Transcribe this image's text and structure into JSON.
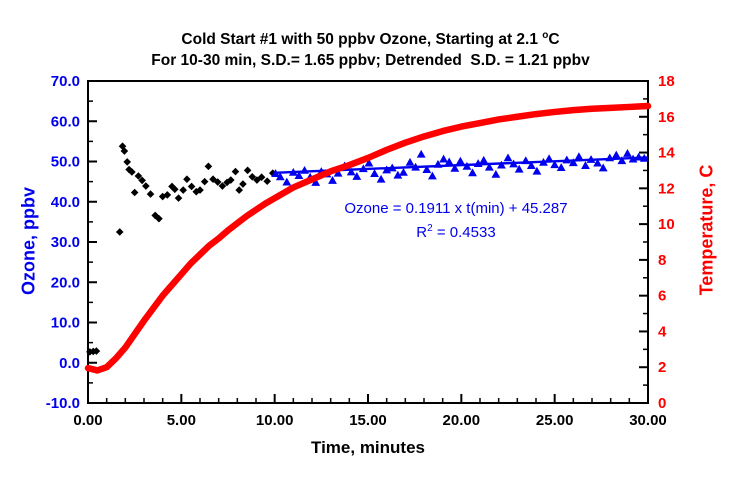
{
  "colors": {
    "ozone_blue": "#0000ee",
    "temp_red": "#ff0000",
    "axis_black": "#000000",
    "background": "#ffffff"
  },
  "titles": {
    "line1_prefix": "Cold Start #1 with 50 ppbv Ozone, Starting at 2.1 ",
    "line1_sup": "o",
    "line1_suffix": "C",
    "line2": "For 10-30 min, S.D.= 1.65 ppbv; Detrended  S.D. = 1.21 ppbv"
  },
  "annotation": {
    "line1": "Ozone = 0.1911 x t(min) + 45.287",
    "line2_base": "R",
    "line2_sup": "2",
    "line2_rest": " = 0.4533"
  },
  "chart_data": {
    "type": "scatter",
    "title": "Cold Start #1 with 50 ppbv Ozone, Starting at 2.1 °C",
    "subtitle": "For 10-30 min, S.D.= 1.65 ppbv; Detrended  S.D. = 1.21 ppbv",
    "xlabel": "Time, minutes",
    "ylabel_left": "Ozone, ppbv",
    "ylabel_right": "Temperature, C",
    "xlim": [
      0,
      30
    ],
    "ylim_left": [
      -10,
      70
    ],
    "ylim_right": [
      0,
      18
    ],
    "grid": false,
    "x_ticks": [
      0,
      5,
      10,
      15,
      20,
      25,
      30
    ],
    "x_tick_labels": [
      "0.00",
      "5.00",
      "10.00",
      "15.00",
      "20.00",
      "25.00",
      "30.00"
    ],
    "x_minor_step": 1,
    "y_left_ticks": [
      70,
      60,
      50,
      40,
      30,
      20,
      10,
      0,
      -10
    ],
    "y_left_labels": [
      "70.0",
      "60.0",
      "50.0",
      "40.0",
      "30.0",
      "20.0",
      "10.0",
      "0.0",
      "-10.0"
    ],
    "y_left_minor_step": 5,
    "y_right_ticks": [
      18,
      16,
      14,
      12,
      10,
      8,
      6,
      4,
      2,
      0
    ],
    "y_right_labels": [
      "18",
      "16",
      "14",
      "12",
      "10",
      "8",
      "6",
      "4",
      "2",
      "0"
    ],
    "y_right_minor_step": 1,
    "fit": {
      "slope": 0.1911,
      "intercept": 45.287,
      "r_squared": 0.4533,
      "x_range": [
        10,
        30
      ]
    },
    "series": [
      {
        "name": "ozone-0-10min",
        "type": "scatter",
        "marker": "diamond",
        "color": "#000000",
        "axis": "left",
        "points": [
          [
            0.1,
            2.7
          ],
          [
            0.28,
            2.8
          ],
          [
            0.45,
            2.9
          ],
          [
            1.7,
            32.5
          ],
          [
            1.85,
            53.8
          ],
          [
            1.95,
            52.6
          ],
          [
            2.1,
            49.9
          ],
          [
            2.2,
            48.0
          ],
          [
            2.35,
            47.4
          ],
          [
            2.5,
            42.3
          ],
          [
            2.7,
            46.4
          ],
          [
            2.9,
            45.3
          ],
          [
            3.1,
            43.9
          ],
          [
            3.35,
            41.9
          ],
          [
            3.6,
            36.6
          ],
          [
            3.8,
            35.8
          ],
          [
            4.0,
            41.3
          ],
          [
            4.25,
            41.7
          ],
          [
            4.5,
            43.8
          ],
          [
            4.65,
            43.1
          ],
          [
            4.85,
            40.9
          ],
          [
            5.1,
            42.9
          ],
          [
            5.3,
            45.6
          ],
          [
            5.55,
            43.8
          ],
          [
            5.8,
            42.5
          ],
          [
            6.0,
            42.9
          ],
          [
            6.25,
            45.0
          ],
          [
            6.45,
            48.8
          ],
          [
            6.7,
            45.6
          ],
          [
            6.95,
            44.9
          ],
          [
            7.2,
            43.9
          ],
          [
            7.45,
            44.8
          ],
          [
            7.65,
            45.4
          ],
          [
            7.9,
            47.5
          ],
          [
            8.1,
            42.9
          ],
          [
            8.3,
            44.4
          ],
          [
            8.55,
            47.8
          ],
          [
            8.8,
            46.2
          ],
          [
            9.05,
            45.4
          ],
          [
            9.3,
            46.1
          ],
          [
            9.6,
            45.1
          ],
          [
            9.9,
            47.1
          ]
        ]
      },
      {
        "name": "ozone-10-30min",
        "type": "scatter",
        "marker": "triangle",
        "color": "#0000ee",
        "axis": "left",
        "points": [
          [
            10.05,
            47.0
          ],
          [
            10.3,
            46.2
          ],
          [
            10.65,
            44.9
          ],
          [
            11.0,
            47.3
          ],
          [
            11.3,
            46.5
          ],
          [
            11.6,
            47.8
          ],
          [
            11.9,
            46.1
          ],
          [
            12.2,
            44.8
          ],
          [
            12.5,
            47.5
          ],
          [
            12.8,
            46.9
          ],
          [
            13.1,
            45.3
          ],
          [
            13.4,
            47.1
          ],
          [
            13.75,
            48.9
          ],
          [
            14.1,
            47.4
          ],
          [
            14.4,
            46.3
          ],
          [
            14.75,
            48.2
          ],
          [
            15.05,
            49.6
          ],
          [
            15.35,
            47.0
          ],
          [
            15.7,
            45.6
          ],
          [
            16.0,
            47.9
          ],
          [
            16.3,
            48.4
          ],
          [
            16.6,
            46.6
          ],
          [
            16.9,
            47.3
          ],
          [
            17.25,
            49.8
          ],
          [
            17.55,
            48.6
          ],
          [
            17.85,
            51.8
          ],
          [
            18.15,
            48.0
          ],
          [
            18.45,
            46.4
          ],
          [
            18.75,
            49.3
          ],
          [
            19.05,
            50.6
          ],
          [
            19.35,
            49.9
          ],
          [
            19.65,
            48.3
          ],
          [
            19.95,
            50.1
          ],
          [
            20.3,
            48.8
          ],
          [
            20.6,
            47.2
          ],
          [
            20.9,
            49.5
          ],
          [
            21.2,
            50.3
          ],
          [
            21.5,
            48.6
          ],
          [
            21.85,
            46.8
          ],
          [
            22.15,
            49.1
          ],
          [
            22.5,
            50.9
          ],
          [
            22.8,
            49.4
          ],
          [
            23.1,
            48.1
          ],
          [
            23.45,
            50.2
          ],
          [
            23.75,
            49.0
          ],
          [
            24.05,
            47.6
          ],
          [
            24.4,
            49.8
          ],
          [
            24.7,
            50.7
          ],
          [
            25.0,
            49.2
          ],
          [
            25.35,
            48.5
          ],
          [
            25.65,
            50.4
          ],
          [
            26.0,
            49.7
          ],
          [
            26.3,
            51.2
          ],
          [
            26.65,
            49.0
          ],
          [
            26.95,
            50.5
          ],
          [
            27.3,
            49.6
          ],
          [
            27.6,
            48.4
          ],
          [
            27.95,
            50.9
          ],
          [
            28.3,
            51.6
          ],
          [
            28.6,
            50.2
          ],
          [
            28.9,
            52.0
          ],
          [
            29.2,
            50.6
          ],
          [
            29.5,
            51.1
          ],
          [
            29.8,
            50.8
          ]
        ]
      },
      {
        "name": "temperature",
        "type": "line",
        "color": "#ff0000",
        "axis": "right",
        "points": [
          [
            0.0,
            1.95
          ],
          [
            0.5,
            1.82
          ],
          [
            1.0,
            2.0
          ],
          [
            1.5,
            2.5
          ],
          [
            2.0,
            3.1
          ],
          [
            2.5,
            3.85
          ],
          [
            3.0,
            4.6
          ],
          [
            3.5,
            5.3
          ],
          [
            4.0,
            6.0
          ],
          [
            4.5,
            6.6
          ],
          [
            5.0,
            7.2
          ],
          [
            5.5,
            7.8
          ],
          [
            6.0,
            8.3
          ],
          [
            6.5,
            8.8
          ],
          [
            7.0,
            9.2
          ],
          [
            7.5,
            9.65
          ],
          [
            8.0,
            10.05
          ],
          [
            8.5,
            10.45
          ],
          [
            9.0,
            10.8
          ],
          [
            9.5,
            11.15
          ],
          [
            10.0,
            11.45
          ],
          [
            11.0,
            12.05
          ],
          [
            12.0,
            12.5
          ],
          [
            13.0,
            12.95
          ],
          [
            14.0,
            13.3
          ],
          [
            15.0,
            13.7
          ],
          [
            16.0,
            14.15
          ],
          [
            17.0,
            14.55
          ],
          [
            18.0,
            14.9
          ],
          [
            19.0,
            15.2
          ],
          [
            20.0,
            15.45
          ],
          [
            21.0,
            15.65
          ],
          [
            22.0,
            15.85
          ],
          [
            23.0,
            16.0
          ],
          [
            24.0,
            16.15
          ],
          [
            25.0,
            16.27
          ],
          [
            26.0,
            16.37
          ],
          [
            27.0,
            16.45
          ],
          [
            28.0,
            16.5
          ],
          [
            29.0,
            16.55
          ],
          [
            30.0,
            16.6
          ]
        ]
      }
    ]
  }
}
